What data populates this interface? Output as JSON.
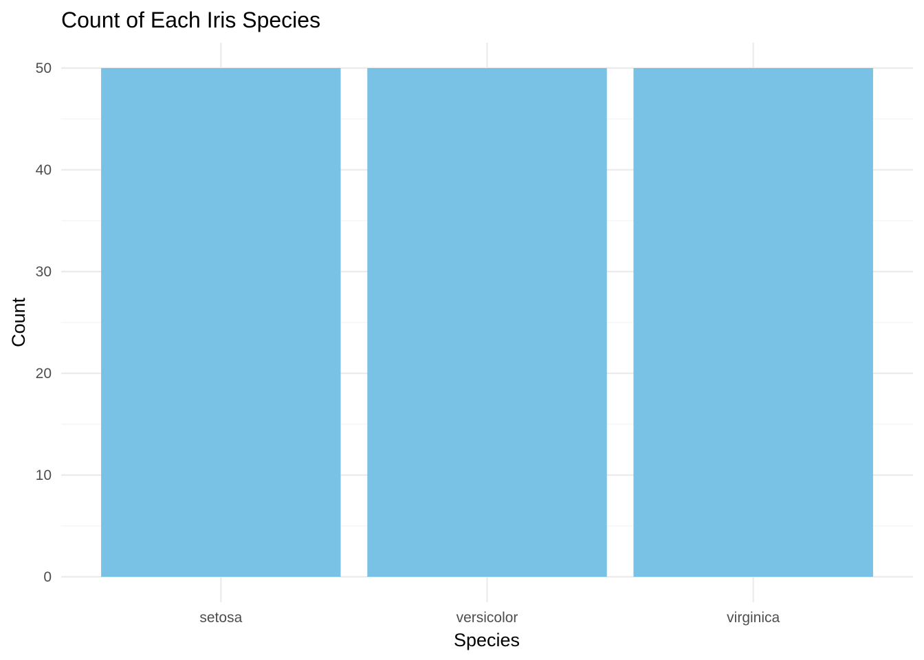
{
  "chart_data": {
    "type": "bar",
    "title": "Count of Each Iris Species",
    "xlabel": "Species",
    "ylabel": "Count",
    "categories": [
      "setosa",
      "versicolor",
      "virginica"
    ],
    "values": [
      50,
      50,
      50
    ],
    "ylim": [
      0,
      50
    ],
    "yticks": [
      0,
      10,
      20,
      30,
      40,
      50
    ],
    "grid": true,
    "legend": "none",
    "bar_color": "#7AC2E5"
  }
}
